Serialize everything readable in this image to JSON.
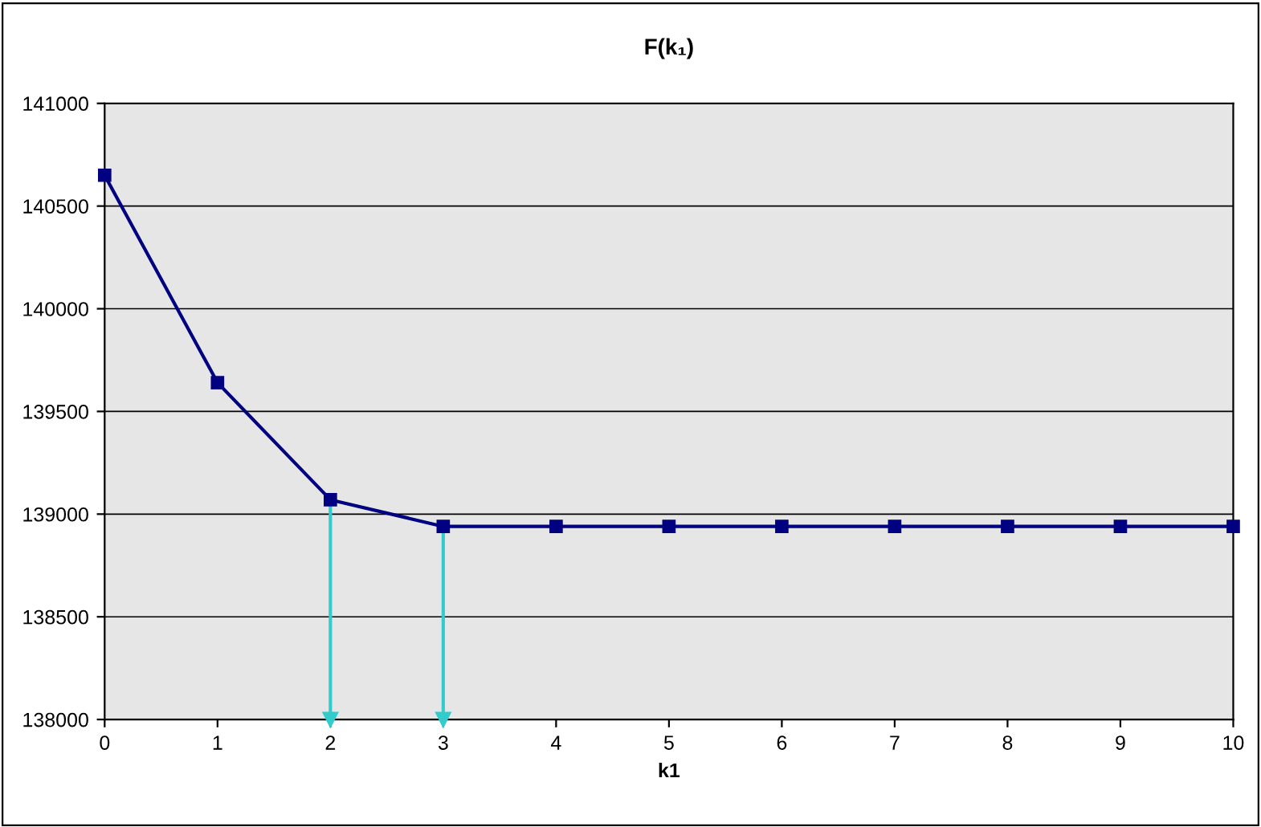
{
  "chart_data": {
    "type": "line",
    "title": "F(k₁)",
    "xlabel": "k1",
    "x": [
      0,
      1,
      2,
      3,
      4,
      5,
      6,
      7,
      8,
      9,
      10
    ],
    "series": [
      {
        "color": "#000080",
        "values": [
          140650,
          139640,
          139070,
          138940,
          138940,
          138940,
          138940,
          138940,
          138940,
          138940,
          138940
        ]
      }
    ],
    "xlim": [
      0,
      10
    ],
    "xticks": [
      0,
      1,
      2,
      3,
      4,
      5,
      6,
      7,
      8,
      9,
      10
    ],
    "ylim": [
      138000,
      141000
    ],
    "yticks": [
      138000,
      138500,
      139000,
      139500,
      140000,
      140500,
      141000
    ],
    "grid": "y",
    "marker": "square",
    "line_style": "solid",
    "legend": false,
    "ref_lines": [
      {
        "axis": "x",
        "value": 2,
        "color": "#33cccc"
      },
      {
        "axis": "x",
        "value": 3,
        "color": "#33cccc"
      }
    ]
  }
}
